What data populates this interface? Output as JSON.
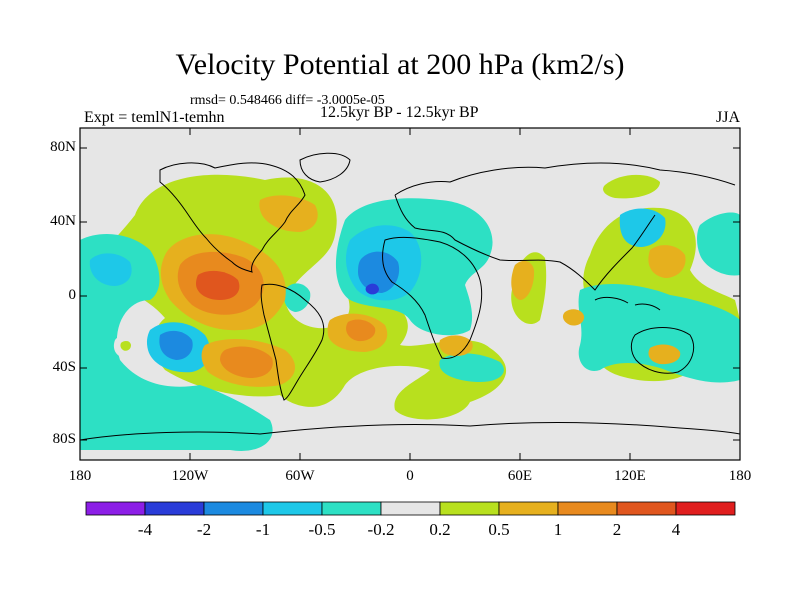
{
  "title": "Velocity Potential at 200 hPa (km2/s)",
  "stats_line": "rmsd= 0.548466 diff= -3.0005e-05",
  "expt_label": "Expt = temlN1-temhn",
  "period_label": "12.5kyr BP - 12.5kyr BP",
  "season_label": "JJA",
  "lat_ticks": [
    "80N",
    "40N",
    "0",
    "40S",
    "80S"
  ],
  "lon_ticks": [
    "180",
    "120W",
    "60W",
    "0",
    "60E",
    "120E",
    "180"
  ],
  "colorbar": {
    "labels": [
      "-4",
      "-2",
      "-1",
      "-0.5",
      "-0.2",
      "0.2",
      "0.5",
      "1",
      "2",
      "4"
    ],
    "colors": [
      "#8c1ee6",
      "#2a3cd8",
      "#1c8ae0",
      "#1ec8e8",
      "#2de0c4",
      "#e6e6e6",
      "#b8e01e",
      "#e6b01e",
      "#e88a1e",
      "#e0561e",
      "#e01e1e"
    ]
  },
  "colors": {
    "background": "#e6e6e6",
    "coast": "#000000"
  }
}
